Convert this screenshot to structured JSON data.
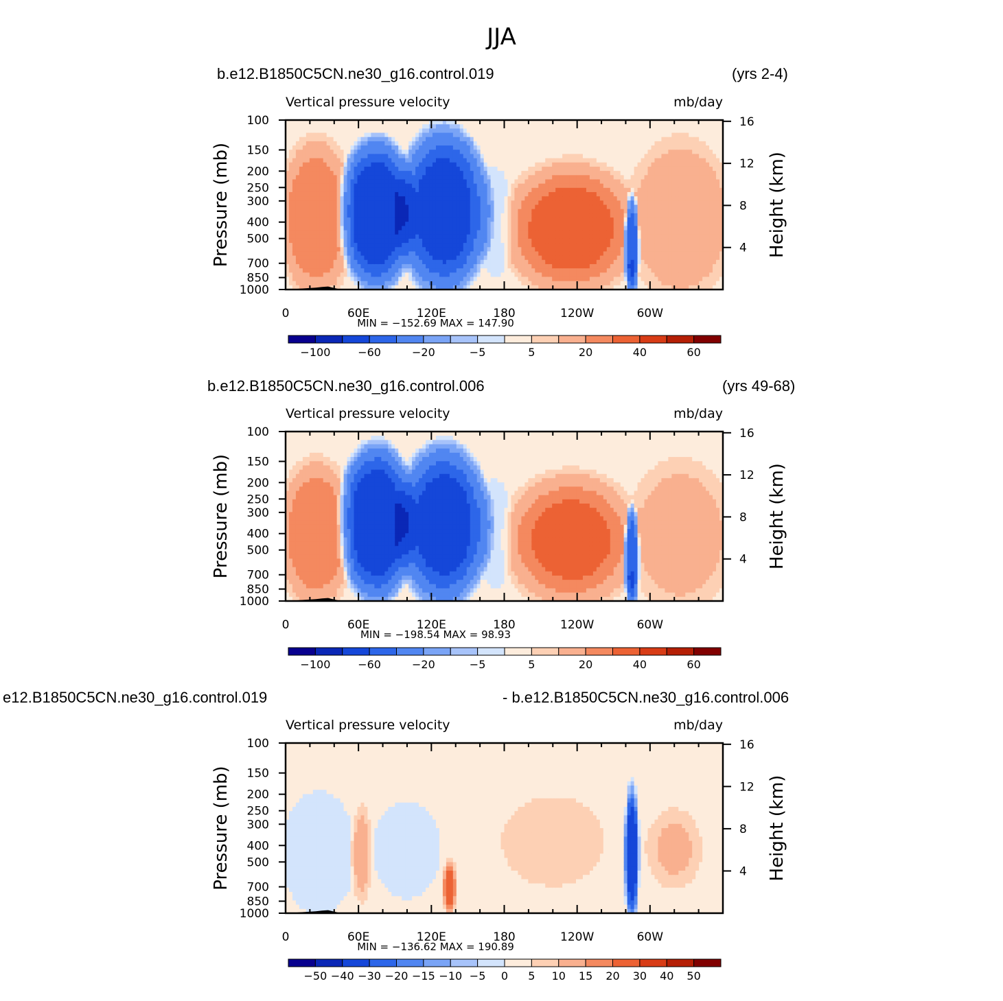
{
  "main_title": "JJA",
  "colorbar_ab": {
    "colors": [
      "#08008e",
      "#0a27b6",
      "#1547d9",
      "#2d66e9",
      "#5186f1",
      "#7aa4f6",
      "#a7c3fa",
      "#d3e4fc",
      "#fdecdc",
      "#fdd0b4",
      "#f9b08f",
      "#f4895f",
      "#ec6234",
      "#d83c16",
      "#b51f05",
      "#810000"
    ],
    "labels": [
      "-100",
      "-60",
      "-20",
      "-5",
      "5",
      "20",
      "40",
      "60"
    ]
  },
  "colorbar_diff": {
    "colors": [
      "#08008e",
      "#0a27b6",
      "#1547d9",
      "#2d66e9",
      "#5186f1",
      "#7aa4f6",
      "#a7c3fa",
      "#d3e4fc",
      "#fdecdc",
      "#fdd0b4",
      "#f9b08f",
      "#f4895f",
      "#ec6234",
      "#d83c16",
      "#b51f05",
      "#810000"
    ],
    "labels": [
      "-50",
      "-40",
      "-30",
      "-20",
      "-15",
      "-10",
      "-5",
      "0",
      "5",
      "10",
      "15",
      "20",
      "30",
      "40",
      "50"
    ]
  },
  "chart_data": [
    {
      "type": "heatmap",
      "case_title": "b.e12.B1850C5CN.ne30_g16.control.019",
      "years": "(yrs 2-4)",
      "left_string": "Vertical pressure velocity",
      "right_string": "mb/day",
      "ylabel": "Pressure (mb)",
      "ylabel_right": "Height (km)",
      "xlim": [
        0,
        360
      ],
      "x_ticks": [
        {
          "v": 0,
          "l": "0"
        },
        {
          "v": 60,
          "l": "60E"
        },
        {
          "v": 120,
          "l": "120E"
        },
        {
          "v": 180,
          "l": "180"
        },
        {
          "v": 240,
          "l": "120W"
        },
        {
          "v": 300,
          "l": "60W"
        }
      ],
      "y_ticks": [
        "100",
        "150",
        "200",
        "250",
        "300",
        "400",
        "500",
        "700",
        "850",
        "1000"
      ],
      "y_ticks_right": [
        "16",
        "12",
        "8",
        "4"
      ],
      "min_max": "MIN = −152.69   MAX = 147.90",
      "regions": [
        {
          "lon": [
            0,
            50
          ],
          "p": [
            150,
            950
          ],
          "value": 25
        },
        {
          "lon": [
            50,
            100
          ],
          "p": [
            150,
            850
          ],
          "value": -80
        },
        {
          "lon": [
            100,
            160
          ],
          "p": [
            130,
            900
          ],
          "value": -70
        },
        {
          "lon": [
            160,
            185
          ],
          "p": [
            200,
            800
          ],
          "value": -8
        },
        {
          "lon": [
            190,
            280
          ],
          "p": [
            200,
            950
          ],
          "value": 30
        },
        {
          "lon": [
            280,
            290
          ],
          "p": [
            300,
            980
          ],
          "value": -70
        },
        {
          "lon": [
            290,
            360
          ],
          "p": [
            150,
            980
          ],
          "value": 15
        }
      ]
    },
    {
      "type": "heatmap",
      "case_title": "b.e12.B1850C5CN.ne30_g16.control.006",
      "years": "(yrs 49-68)",
      "left_string": "Vertical pressure velocity",
      "right_string": "mb/day",
      "ylabel": "Pressure (mb)",
      "ylabel_right": "Height (km)",
      "xlim": [
        0,
        360
      ],
      "x_ticks": [
        {
          "v": 0,
          "l": "0"
        },
        {
          "v": 60,
          "l": "60E"
        },
        {
          "v": 120,
          "l": "120E"
        },
        {
          "v": 180,
          "l": "180"
        },
        {
          "v": 240,
          "l": "120W"
        },
        {
          "v": 300,
          "l": "60W"
        }
      ],
      "y_ticks": [
        "100",
        "150",
        "200",
        "250",
        "300",
        "400",
        "500",
        "700",
        "850",
        "1000"
      ],
      "y_ticks_right": [
        "16",
        "12",
        "8",
        "4"
      ],
      "min_max": "MIN = −198.54   MAX =   98.93",
      "regions": [
        {
          "lon": [
            0,
            50
          ],
          "p": [
            170,
            950
          ],
          "value": 25
        },
        {
          "lon": [
            50,
            100
          ],
          "p": [
            140,
            850
          ],
          "value": -80
        },
        {
          "lon": [
            100,
            160
          ],
          "p": [
            140,
            900
          ],
          "value": -70
        },
        {
          "lon": [
            160,
            185
          ],
          "p": [
            200,
            800
          ],
          "value": -8
        },
        {
          "lon": [
            190,
            280
          ],
          "p": [
            200,
            950
          ],
          "value": 28
        },
        {
          "lon": [
            280,
            290
          ],
          "p": [
            300,
            980
          ],
          "value": -70
        },
        {
          "lon": [
            290,
            360
          ],
          "p": [
            170,
            980
          ],
          "value": 12
        }
      ]
    },
    {
      "type": "heatmap",
      "case_title": "e12.B1850C5CN.ne30_g16.control.019",
      "case_title_right": "- b.e12.B1850C5CN.ne30_g16.control.006",
      "left_string": "Vertical pressure velocity",
      "right_string": "mb/day",
      "ylabel": "Pressure (mb)",
      "ylabel_right": "Height (km)",
      "xlim": [
        0,
        360
      ],
      "x_ticks": [
        {
          "v": 0,
          "l": "0"
        },
        {
          "v": 60,
          "l": "60E"
        },
        {
          "v": 120,
          "l": "120E"
        },
        {
          "v": 180,
          "l": "180"
        },
        {
          "v": 240,
          "l": "120W"
        },
        {
          "v": 300,
          "l": "60W"
        }
      ],
      "y_ticks": [
        "100",
        "150",
        "200",
        "250",
        "300",
        "400",
        "500",
        "700",
        "850",
        "1000"
      ],
      "y_ticks_right": [
        "16",
        "12",
        "8",
        "4"
      ],
      "min_max": "MIN = −136.62   MAX = 190.89",
      "regions": [
        {
          "lon": [
            0,
            55
          ],
          "p": [
            200,
            980
          ],
          "value": -5
        },
        {
          "lon": [
            55,
            70
          ],
          "p": [
            250,
            800
          ],
          "value": 12
        },
        {
          "lon": [
            70,
            130
          ],
          "p": [
            200,
            900
          ],
          "value": -3
        },
        {
          "lon": [
            130,
            140
          ],
          "p": [
            500,
            990
          ],
          "value": 20
        },
        {
          "lon": [
            160,
            280
          ],
          "p": [
            150,
            950
          ],
          "value": 3
        },
        {
          "lon": [
            280,
            290
          ],
          "p": [
            200,
            990
          ],
          "value": -40
        },
        {
          "lon": [
            300,
            340
          ],
          "p": [
            250,
            700
          ],
          "value": 8
        }
      ]
    }
  ]
}
